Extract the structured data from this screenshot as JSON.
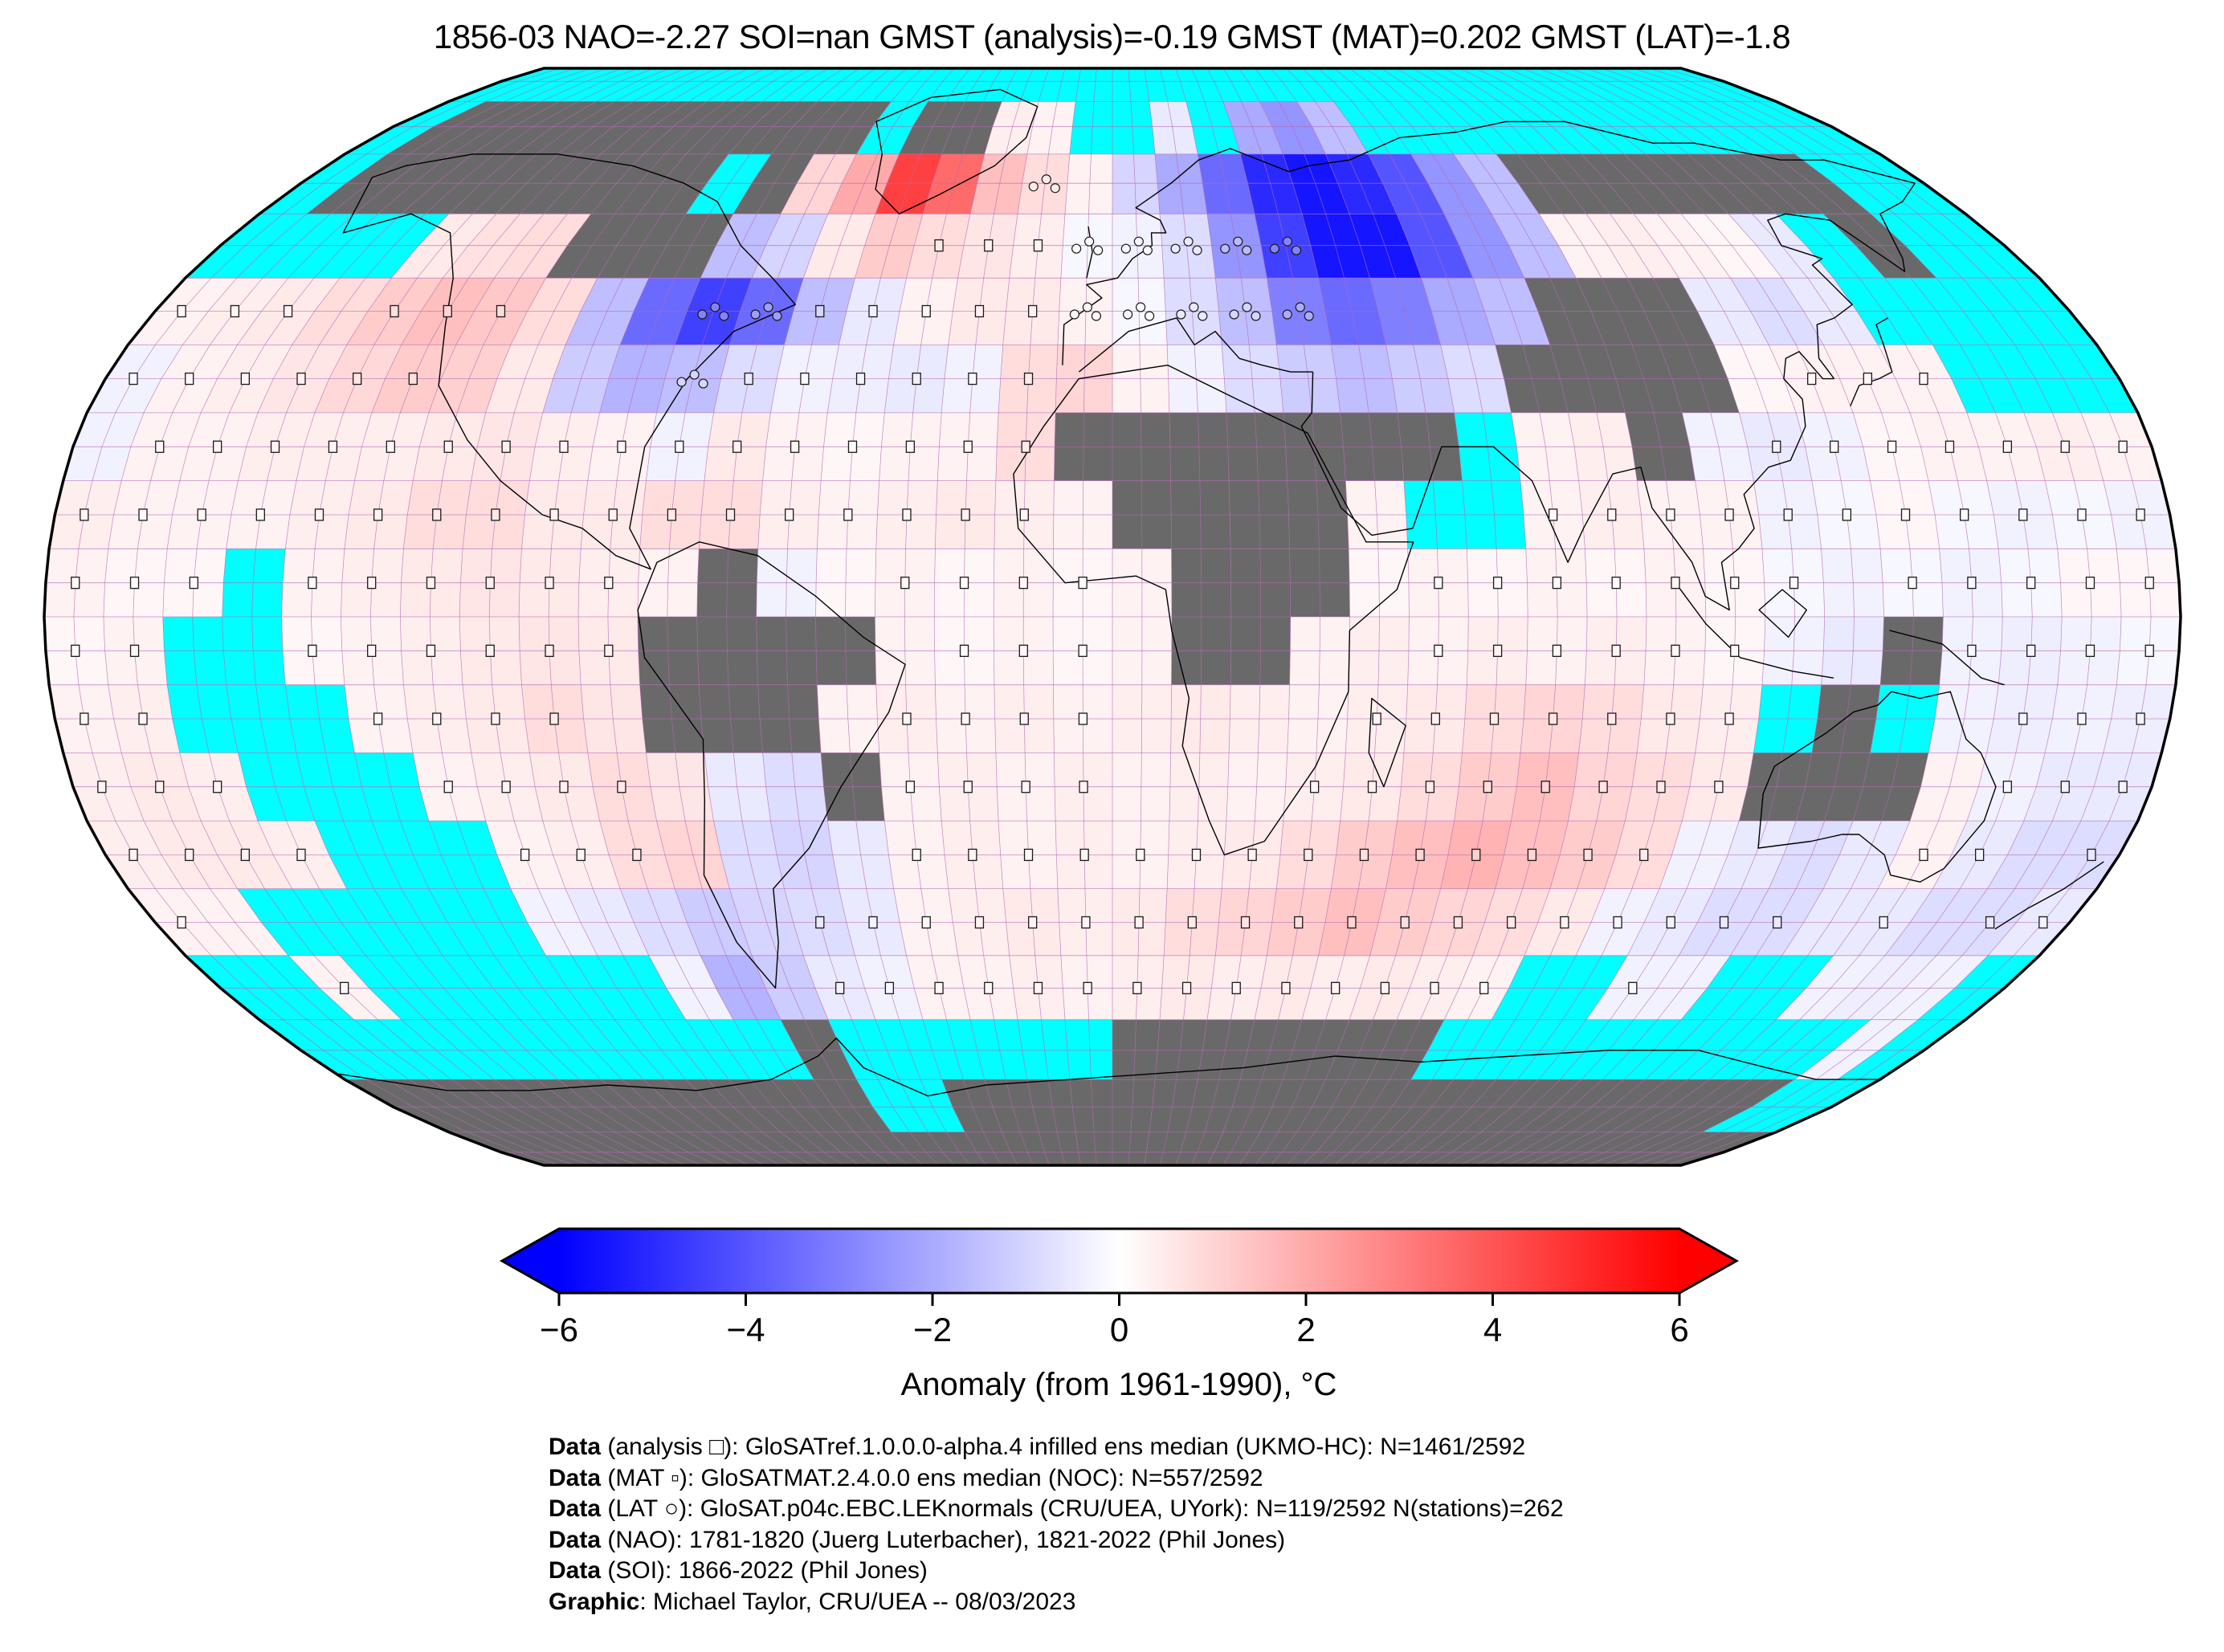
{
  "title": "1856-03 NAO=-2.27 SOI=nan GMST (analysis)=-0.19 GMST (MAT)=0.202 GMST (LAT)=-1.8",
  "colorbar": {
    "label": "Anomaly (from 1961-1990), °C",
    "ticks": [
      "−6",
      "−4",
      "−2",
      "0",
      "2",
      "4",
      "6"
    ],
    "min": -6,
    "max": 6,
    "gradient": {
      "left": "#0000ff",
      "center": "#ffffff",
      "right": "#ff0000"
    }
  },
  "map": {
    "missing_ocean_color": "#00ffff",
    "missing_land_color": "#696969",
    "graticule_color": "#b469b4",
    "coastline_color": "#000000",
    "outline_color": "#000000"
  },
  "chart_data": {
    "type": "heatmap",
    "projection": "robinson",
    "title": "1856-03 global temperature anomaly field",
    "units": "degC anomaly from 1961-1990",
    "lon_start": -180,
    "lon_step": 10,
    "lat_start": 90,
    "lat_step": -10,
    "value_range": [
      -6,
      6
    ],
    "legend": {
      "c": "no-data ocean cell (cyan)",
      "g": "no-data land cell (gray)",
      "number": "anomaly in degC on blue-white-red scale",
      "m_suffix": "cell contains analysis/MAT square marker",
      "o_suffix": "cell contains LAT station circle markers"
    },
    "rows": [
      "c c c c c c c c c c c c c c c c c c c c c c c c c c c c c c c c c c c c",
      "c g g g g g g g g g g g c g g 0.4 0.3 c c -0.5 c -2 -2.5 -1.5 c c c c c c c c c c c c",
      "c g g g g g g g g c g 1 2 4.5 3.5 1.5 0.8o 0.3 -1 -2 -3.5 -5 -5.5 -5 -4 -2.5 -1.5 g g g g g g g c c",
      "c c c c 0.5 0.7 0.8 g g g -1.5 -1 0.5 1.2 0.8m 0.6m 0.4m -0.2o -0.3o -0.8o -2.5o -4.5o -5.5 -5.5 -4 -2.5 -1.5 0.3 0.4 0.3 0.2 -0.5 c g c c",
      "0.3m 0.4m 0.5m 0.8 1.2m 1.5m 1.3m 0.8 -1.5 -3.5 -4.5o -3.5o -1.5m -0.5m 0.3m 0.5m 0.5m 0.3o -0.2o -0.8o -1.5o -3o -3.5 -3 -2 -1.5 g g g -0.5 -0.8 -0.5 c c c c",
      "-0.3m 0.3m 0.4m 0.6m 0.9m 1.2m 1.1 0.5 -1.2 -1.8 -1.5o -0.8m -0.3m -0.4m -0.5m -0.3m 0.8m 1 0.3 -0.3 -0.8 -1.2 -1.5 -1.2 -0.8 g g g g 0.2 0.3m 0.3m 0.3m c c c",
      "-0.3 0.3m 0.3m 0.4m 0.4m 0.4m 0.5m 0.6m 0.4m 0.3m -0.3m 0.5m 0.3m 0.2m 0.3m 0.3m 0.8m g g g g g g g c 0.3 0.4 g -0.3 -0.5m -0.3m 0.2m 0.3m 0.3m 0.4m 0.3m",
      "0.4m 0.3m 0.3m 0.3m 0.4m 0.5m 0.8m 0.8m 0.5m 0.5m 0.8m 0.8m 0.4m 0.3m 0.4m 0.5m 0.4m 0.3 g g g g 0.3 c c 0.3m 0.4m 0.3m 0.3m -0.3m -0.2m 0.2m -0.2m -0.3m -0.2m -0.3m",
      "0.3m 0.2m 0.2m c 0.3m 0.4m 0.5m 0.6m 0.5m 0.4m 0.3 g -0.3 0.2 0.3m 0.2m 0.3m 0.2m 0.3 g g g 0.2 0.3m 0.2m 0.3m 0.2m 0.3m 0.2m -0.2m -0.3 -0.2m -0.3m -0.2m 0.2m 0.2m",
      "0.2m 0.3m c c 0.2m 0.3m 0.4m 0.5m 0.6m 0.5m g g g g 0.3 0.2m 0.3m 0.2m 0.3 g g 0.3 0.4 0.3m 0.4m 0.3m 0.4m 0.3m 0.2m -0.3 -0.5 g -0.3m -0.4m -0.3m -0.2m",
      "0.3m 0.4m c c c 0.3m 0.4m 0.5m 0.8m 0.6 g g g 0.3 0.4m 0.3m 0.4m 0.3m 0.4 0.5 0.4 0.3 0.4m 0.5m 0.8m 1m 0.8m 0.5m 0.4m c g c -0.3 -0.4m -0.3m -0.4m",
      "0.4m 0.5m 0.4m c c c 0.3m 0.4m 0.5m 0.8m 0.6 -0.5 -0.8 g 0.3m 0.4m 0.3m 0.4m 0.3 0.4 0.3 0.4m 0.5m 0.8m 1.2m 1.5m 1m 0.8m 0.5m g g g 0.3 -0.3m -0.5m -0.5m",
      "0.4m 0.5m 0.5m 0.4m c c c 0.3m 0.4m 0.8m 1 -0.8 -1 -0.5 0.3m 0.4m 0.3m 0.4m 0.3m 0.4m 0.5m 0.8m 1.2m 1.5m 1.8m 1.5m 1.2m 0.8m -0.3 -0.5 -0.8 -0.5 0.3m -0.5m -0.8 -0.8m",
      "0.3m 0.3 c c c c c -0.3 -0.5 -0.8 -1.2 -1 -0.8m -0.5m 0.3m 0.4m 0.5m 0.4m 0.5m 0.8m 1m 1.2m 1.5m 1.2m 1m 0.8m 0.5m -0.3m -0.5m -0.8m -0.8m -0.5 -0.5m -0.8 -0.8m -0.5m",
      "c c 0.3m c c c c c c -0.3 -1.8 -1.2 -0.5m -0.3m 0.3m 0.3m 0.4m 0.3m 0.4m 0.5m 0.4m 0.5m 0.4m 0.5m 0.4m 0.3m c c -0.3m -0.3 c c -0.3 -0.4 -0.3 c",
      "c c c c c c c c c c c g c c c c c c g g g g g g g c c c c c c c c c -0.3 c",
      "g g g g g g g g g g g g c c g g g g g g g g g g g g g g g g g g g g c c",
      "g g g g g g g g g g g g g g g g g g g g g g g g g g g g g g g g g g g g"
    ]
  },
  "footer": {
    "lines": [
      {
        "bold": "Data",
        "rest": " (analysis □): GloSATref.1.0.0.0-alpha.4 infilled ens median (UKMO-HC): N=1461/2592"
      },
      {
        "bold": "Data",
        "rest": " (MAT ▫): GloSATMAT.2.4.0.0 ens median (NOC): N=557/2592"
      },
      {
        "bold": "Data",
        "rest": " (LAT ○): GloSAT.p04c.EBC.LEKnormals (CRU/UEA, UYork): N=119/2592 N(stations)=262"
      },
      {
        "bold": "Data",
        "rest": " (NAO): 1781-1820 (Juerg Luterbacher), 1821-2022 (Phil Jones)"
      },
      {
        "bold": "Data",
        "rest": " (SOI): 1866-2022 (Phil Jones)"
      },
      {
        "bold": "Graphic",
        "rest": ": Michael Taylor, CRU/UEA -- 08/03/2023"
      }
    ]
  }
}
